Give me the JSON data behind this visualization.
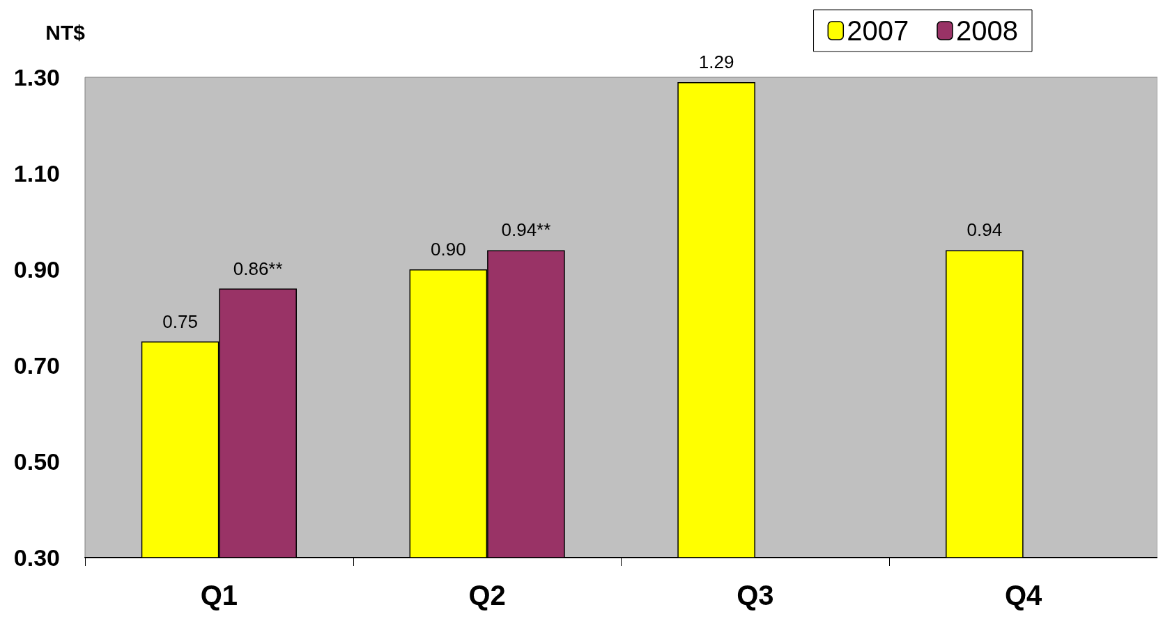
{
  "chart_data": {
    "type": "bar",
    "ylabel": "NT$",
    "categories": [
      "Q1",
      "Q2",
      "Q3",
      "Q4"
    ],
    "series": [
      {
        "name": "2007",
        "color": "#ffff00",
        "values": [
          0.75,
          0.9,
          1.29,
          0.94
        ],
        "value_labels": [
          "0.75",
          "0.90",
          "1.29",
          "0.94"
        ]
      },
      {
        "name": "2008",
        "color": "#993366",
        "values": [
          0.86,
          0.94,
          null,
          null
        ],
        "value_labels": [
          "0.86**",
          "0.94**",
          null,
          null
        ]
      }
    ],
    "ylim": [
      0.3,
      1.3
    ],
    "yticks": [
      {
        "value": 0.3,
        "label": "0.30"
      },
      {
        "value": 0.5,
        "label": "0.50"
      },
      {
        "value": 0.7,
        "label": "0.70"
      },
      {
        "value": 0.9,
        "label": "0.90"
      },
      {
        "value": 1.1,
        "label": "1.10"
      },
      {
        "value": 1.3,
        "label": "1.30"
      }
    ],
    "grid": false,
    "legend": "top right"
  }
}
